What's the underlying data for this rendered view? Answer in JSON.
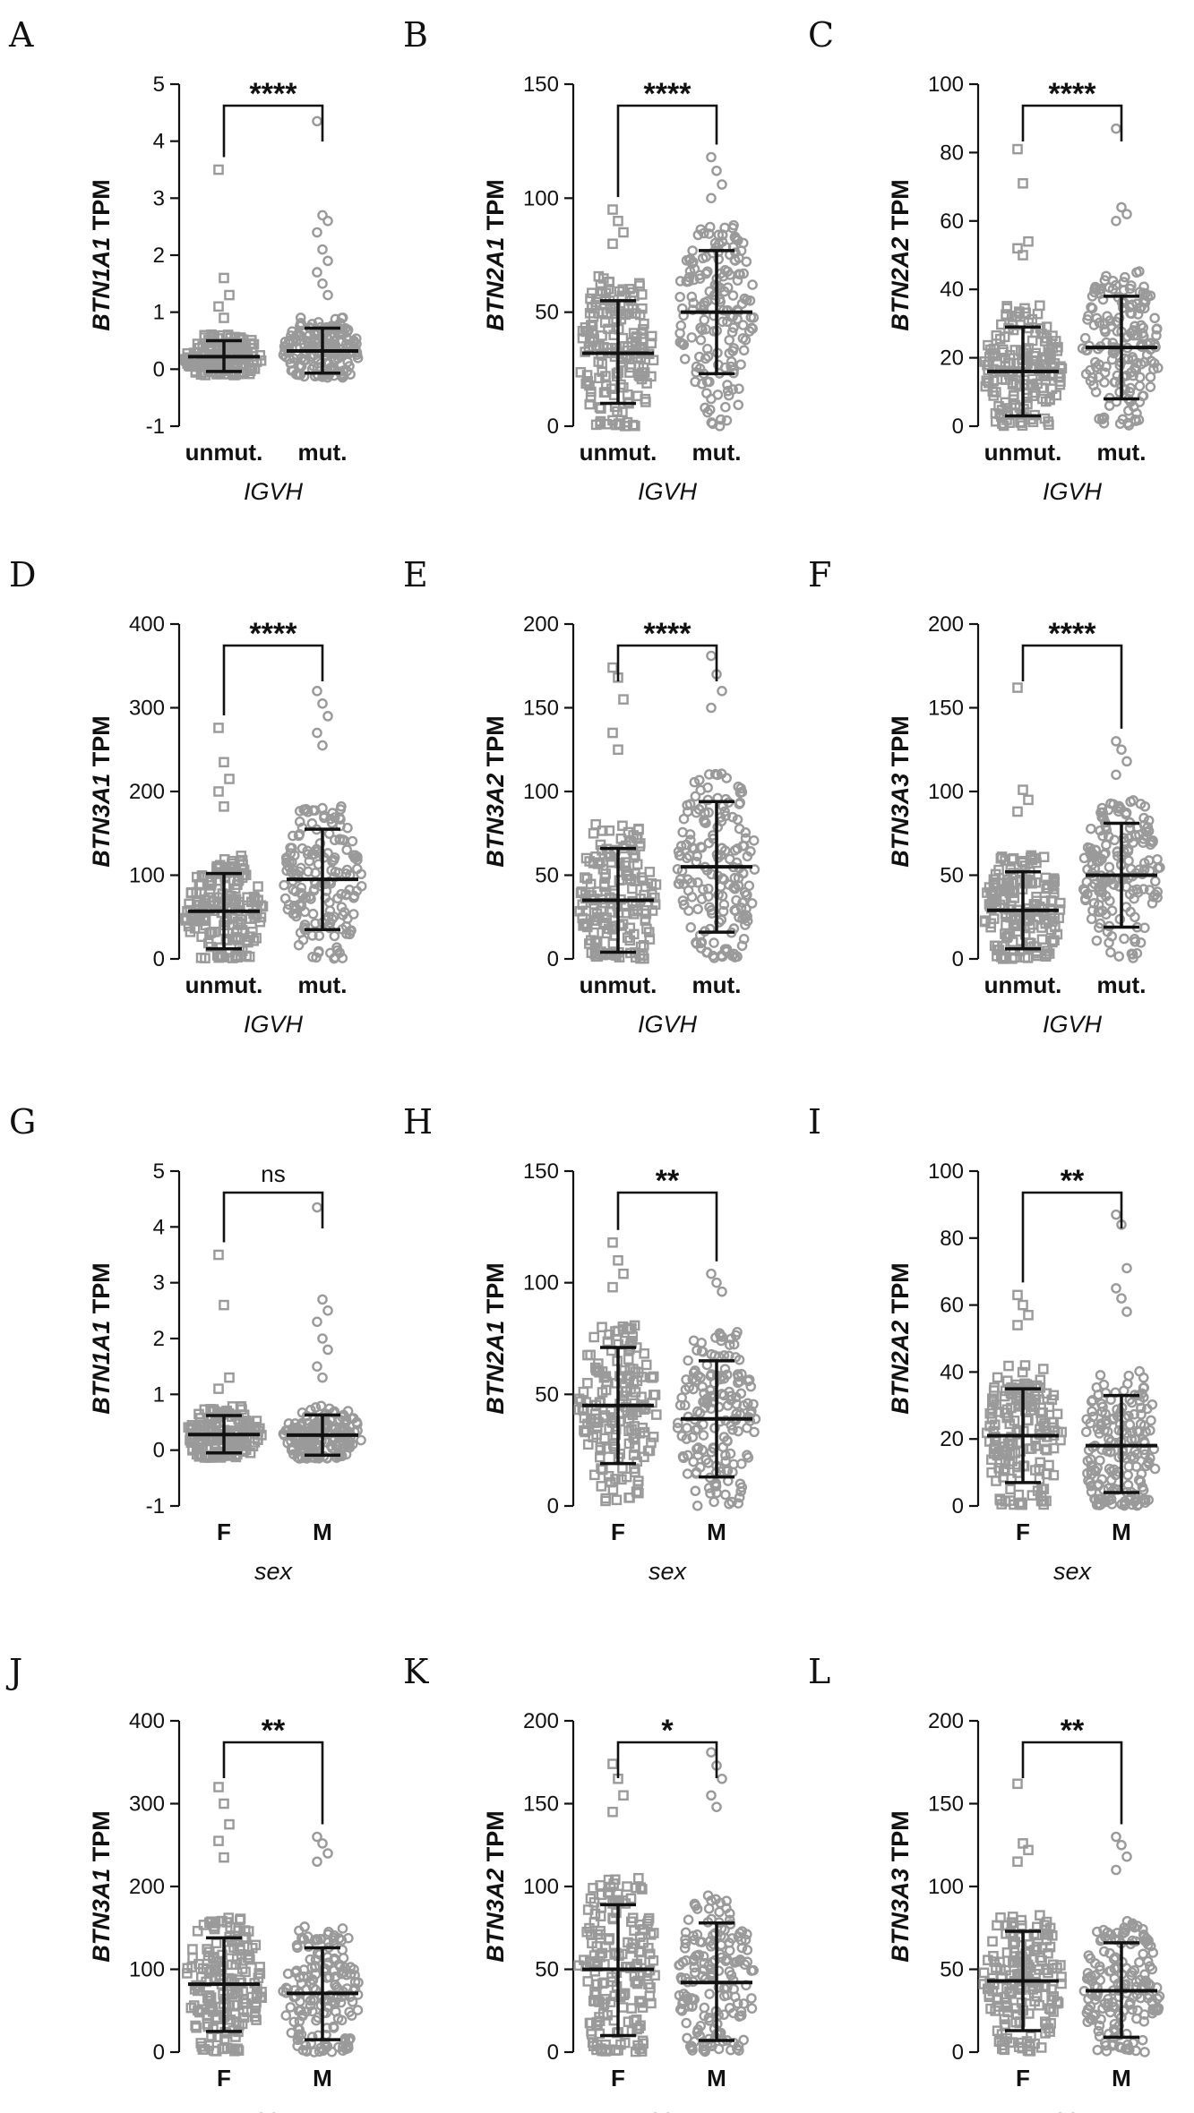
{
  "figure": {
    "point_color": "#9a9a9a",
    "line_color": "#111111"
  },
  "chart_data": [
    {
      "panel": "A",
      "type": "scatter",
      "ylabel_gene": "BTN1A1",
      "ylabel_suffix": " TPM",
      "xlabel": "IGVH",
      "categories": [
        "unmut.",
        "mut."
      ],
      "ylim": [
        -1,
        5
      ],
      "yticks": [
        -1,
        0,
        1,
        2,
        3,
        4,
        5
      ],
      "significance": "****",
      "series": [
        {
          "category": "unmut.",
          "mean": 0.22,
          "sd_low": -0.04,
          "sd_high": 0.5,
          "outliers": [
            3.5,
            1.6,
            1.3,
            1.1,
            0.9
          ],
          "marker": "square"
        },
        {
          "category": "mut.",
          "mean": 0.32,
          "sd_low": -0.07,
          "sd_high": 0.72,
          "outliers": [
            4.35,
            2.7,
            2.6,
            2.4,
            2.1,
            1.9,
            1.7,
            1.5,
            1.3
          ],
          "marker": "circle"
        }
      ]
    },
    {
      "panel": "B",
      "type": "scatter",
      "ylabel_gene": "BTN2A1",
      "ylabel_suffix": " TPM",
      "xlabel": "IGVH",
      "categories": [
        "unmut.",
        "mut."
      ],
      "ylim": [
        0,
        150
      ],
      "yticks": [
        0,
        50,
        100,
        150
      ],
      "significance": "****",
      "series": [
        {
          "category": "unmut.",
          "mean": 32,
          "sd_low": 10,
          "sd_high": 55,
          "outliers": [
            95,
            90,
            85,
            80
          ],
          "marker": "square"
        },
        {
          "category": "mut.",
          "mean": 50,
          "sd_low": 23,
          "sd_high": 77,
          "outliers": [
            118,
            112,
            106,
            100
          ],
          "marker": "circle"
        }
      ]
    },
    {
      "panel": "C",
      "type": "scatter",
      "ylabel_gene": "BTN2A2",
      "ylabel_suffix": " TPM",
      "xlabel": "IGVH",
      "categories": [
        "unmut.",
        "mut."
      ],
      "ylim": [
        0,
        100
      ],
      "yticks": [
        0,
        20,
        40,
        60,
        80,
        100
      ],
      "significance": "****",
      "series": [
        {
          "category": "unmut.",
          "mean": 16,
          "sd_low": 3,
          "sd_high": 29,
          "outliers": [
            81,
            71,
            54,
            52,
            50
          ],
          "marker": "square"
        },
        {
          "category": "mut.",
          "mean": 23,
          "sd_low": 8,
          "sd_high": 38,
          "outliers": [
            87,
            64,
            62,
            60
          ],
          "marker": "circle"
        }
      ]
    },
    {
      "panel": "D",
      "type": "scatter",
      "ylabel_gene": "BTN3A1",
      "ylabel_suffix": " TPM",
      "xlabel": "IGVH",
      "categories": [
        "unmut.",
        "mut."
      ],
      "ylim": [
        0,
        400
      ],
      "yticks": [
        0,
        100,
        200,
        300,
        400
      ],
      "significance": "****",
      "series": [
        {
          "category": "unmut.",
          "mean": 57,
          "sd_low": 12,
          "sd_high": 102,
          "outliers": [
            276,
            235,
            215,
            200,
            182
          ],
          "marker": "square"
        },
        {
          "category": "mut.",
          "mean": 95,
          "sd_low": 35,
          "sd_high": 155,
          "outliers": [
            320,
            305,
            290,
            270,
            255
          ],
          "marker": "circle"
        }
      ]
    },
    {
      "panel": "E",
      "type": "scatter",
      "ylabel_gene": "BTN3A2",
      "ylabel_suffix": " TPM",
      "xlabel": "IGVH",
      "categories": [
        "unmut.",
        "mut."
      ],
      "ylim": [
        0,
        200
      ],
      "yticks": [
        0,
        50,
        100,
        150,
        200
      ],
      "significance": "****",
      "series": [
        {
          "category": "unmut.",
          "mean": 35,
          "sd_low": 4,
          "sd_high": 66,
          "outliers": [
            174,
            168,
            155,
            135,
            125
          ],
          "marker": "square"
        },
        {
          "category": "mut.",
          "mean": 55,
          "sd_low": 16,
          "sd_high": 94,
          "outliers": [
            181,
            170,
            160,
            150
          ],
          "marker": "circle"
        }
      ]
    },
    {
      "panel": "F",
      "type": "scatter",
      "ylabel_gene": "BTN3A3",
      "ylabel_suffix": " TPM",
      "xlabel": "IGVH",
      "categories": [
        "unmut.",
        "mut."
      ],
      "ylim": [
        0,
        200
      ],
      "yticks": [
        0,
        50,
        100,
        150,
        200
      ],
      "significance": "****",
      "series": [
        {
          "category": "unmut.",
          "mean": 29,
          "sd_low": 6,
          "sd_high": 52,
          "outliers": [
            162,
            101,
            95,
            88
          ],
          "marker": "square"
        },
        {
          "category": "mut.",
          "mean": 50,
          "sd_low": 19,
          "sd_high": 81,
          "outliers": [
            130,
            125,
            118,
            110
          ],
          "marker": "circle"
        }
      ]
    },
    {
      "panel": "G",
      "type": "scatter",
      "ylabel_gene": "BTN1A1",
      "ylabel_suffix": " TPM",
      "xlabel": "sex",
      "categories": [
        "F",
        "M"
      ],
      "ylim": [
        -1,
        5
      ],
      "yticks": [
        -1,
        0,
        1,
        2,
        3,
        4,
        5
      ],
      "significance": "ns",
      "series": [
        {
          "category": "F",
          "mean": 0.28,
          "sd_low": -0.05,
          "sd_high": 0.62,
          "outliers": [
            3.5,
            2.6,
            1.3,
            1.1
          ],
          "marker": "square"
        },
        {
          "category": "M",
          "mean": 0.27,
          "sd_low": -0.09,
          "sd_high": 0.63,
          "outliers": [
            4.35,
            2.7,
            2.5,
            2.3,
            2.0,
            1.8,
            1.5,
            1.3
          ],
          "marker": "circle"
        }
      ]
    },
    {
      "panel": "H",
      "type": "scatter",
      "ylabel_gene": "BTN2A1",
      "ylabel_suffix": " TPM",
      "xlabel": "sex",
      "categories": [
        "F",
        "M"
      ],
      "ylim": [
        0,
        150
      ],
      "yticks": [
        0,
        50,
        100,
        150
      ],
      "significance": "**",
      "series": [
        {
          "category": "F",
          "mean": 45,
          "sd_low": 19,
          "sd_high": 71,
          "outliers": [
            118,
            110,
            104,
            98
          ],
          "marker": "square"
        },
        {
          "category": "M",
          "mean": 39,
          "sd_low": 13,
          "sd_high": 65,
          "outliers": [
            104,
            100,
            96
          ],
          "marker": "circle"
        }
      ]
    },
    {
      "panel": "I",
      "type": "scatter",
      "ylabel_gene": "BTN2A2",
      "ylabel_suffix": " TPM",
      "xlabel": "sex",
      "categories": [
        "F",
        "M"
      ],
      "ylim": [
        0,
        100
      ],
      "yticks": [
        0,
        20,
        40,
        60,
        80,
        100
      ],
      "significance": "**",
      "series": [
        {
          "category": "F",
          "mean": 21,
          "sd_low": 7,
          "sd_high": 35,
          "outliers": [
            63,
            60,
            57,
            54
          ],
          "marker": "square"
        },
        {
          "category": "M",
          "mean": 18,
          "sd_low": 4,
          "sd_high": 33,
          "outliers": [
            87,
            84,
            71,
            65,
            62,
            58
          ],
          "marker": "circle"
        }
      ]
    },
    {
      "panel": "J",
      "type": "scatter",
      "ylabel_gene": "BTN3A1",
      "ylabel_suffix": " TPM",
      "xlabel": "sex",
      "categories": [
        "F",
        "M"
      ],
      "ylim": [
        0,
        400
      ],
      "yticks": [
        0,
        100,
        200,
        300,
        400
      ],
      "significance": "**",
      "series": [
        {
          "category": "F",
          "mean": 82,
          "sd_low": 25,
          "sd_high": 138,
          "outliers": [
            320,
            300,
            275,
            255,
            235
          ],
          "marker": "square"
        },
        {
          "category": "M",
          "mean": 71,
          "sd_low": 15,
          "sd_high": 126,
          "outliers": [
            260,
            252,
            240,
            230
          ],
          "marker": "circle"
        }
      ]
    },
    {
      "panel": "K",
      "type": "scatter",
      "ylabel_gene": "BTN3A2",
      "ylabel_suffix": " TPM",
      "xlabel": "sex",
      "categories": [
        "F",
        "M"
      ],
      "ylim": [
        0,
        200
      ],
      "yticks": [
        0,
        50,
        100,
        150,
        200
      ],
      "significance": "*",
      "series": [
        {
          "category": "F",
          "mean": 50,
          "sd_low": 10,
          "sd_high": 89,
          "outliers": [
            174,
            165,
            155,
            145
          ],
          "marker": "square"
        },
        {
          "category": "M",
          "mean": 42,
          "sd_low": 7,
          "sd_high": 78,
          "outliers": [
            181,
            173,
            165,
            155,
            148
          ],
          "marker": "circle"
        }
      ]
    },
    {
      "panel": "L",
      "type": "scatter",
      "ylabel_gene": "BTN3A3",
      "ylabel_suffix": " TPM",
      "xlabel": "sex",
      "categories": [
        "F",
        "M"
      ],
      "ylim": [
        0,
        200
      ],
      "yticks": [
        0,
        50,
        100,
        150,
        200
      ],
      "significance": "**",
      "series": [
        {
          "category": "F",
          "mean": 43,
          "sd_low": 13,
          "sd_high": 73,
          "outliers": [
            162,
            126,
            122,
            115
          ],
          "marker": "square"
        },
        {
          "category": "M",
          "mean": 37,
          "sd_low": 9,
          "sd_high": 66,
          "outliers": [
            130,
            125,
            118,
            110
          ],
          "marker": "circle"
        }
      ]
    }
  ]
}
